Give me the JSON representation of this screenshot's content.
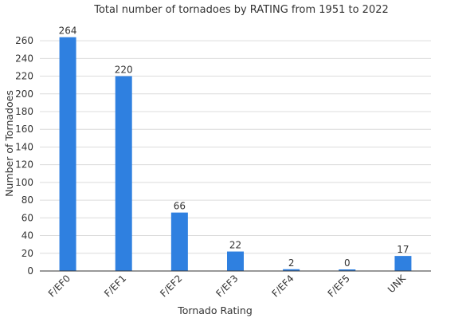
{
  "chart_data": {
    "type": "bar",
    "title": "Total number of tornadoes by RATING from 1951 to 2022",
    "xlabel": "Tornado Rating",
    "ylabel": "Number of Tornadoes",
    "categories": [
      "F/EF0",
      "F/EF1",
      "F/EF2",
      "F/EF3",
      "F/EF4",
      "F/EF5",
      "UNK"
    ],
    "values": [
      264,
      220,
      66,
      22,
      2,
      0,
      17
    ],
    "ylim": [
      0,
      270
    ],
    "yticks": [
      0,
      20,
      40,
      60,
      80,
      100,
      120,
      140,
      160,
      180,
      200,
      220,
      240,
      260
    ],
    "grid": true,
    "legend": "none",
    "bar_color": "#2f80e0"
  }
}
